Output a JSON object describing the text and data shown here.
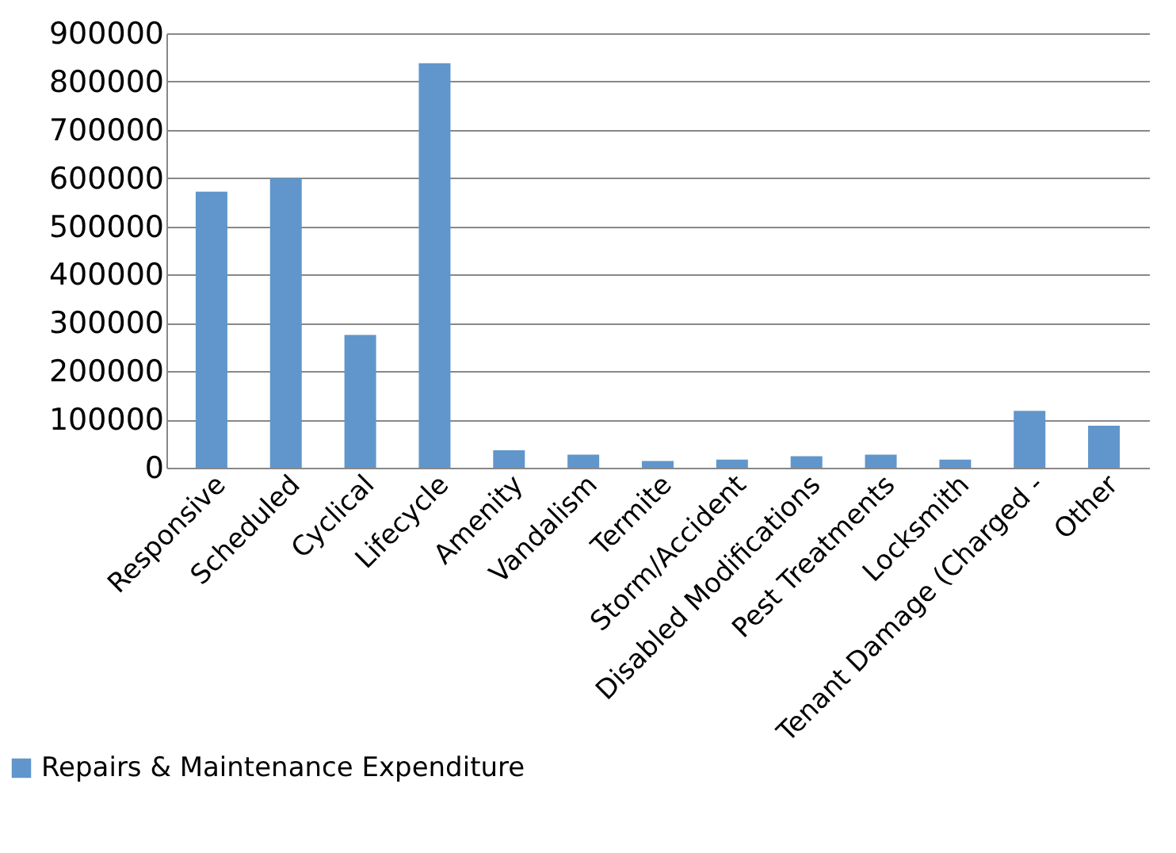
{
  "chart_data": {
    "type": "bar",
    "categories": [
      "Responsive",
      "Scheduled",
      "Cyclical",
      "Lifecycle",
      "Amenity",
      "Vandalism",
      "Termite",
      "Storm/Accident",
      "Disabled Modifications",
      "Pest Treatments",
      "Locksmith",
      "Tenant Damage (Charged -",
      "Other"
    ],
    "series": [
      {
        "name": "Repairs & Maintenance Expenditure",
        "color": "#6096cb",
        "values": [
          572000,
          600000,
          275000,
          838000,
          36000,
          27000,
          14000,
          17000,
          24000,
          27000,
          17000,
          118000,
          87000
        ]
      }
    ],
    "ylim": [
      0,
      900000
    ],
    "yticks": [
      0,
      100000,
      200000,
      300000,
      400000,
      500000,
      600000,
      700000,
      800000,
      900000
    ],
    "grid": "y",
    "legend": "bottom left"
  }
}
